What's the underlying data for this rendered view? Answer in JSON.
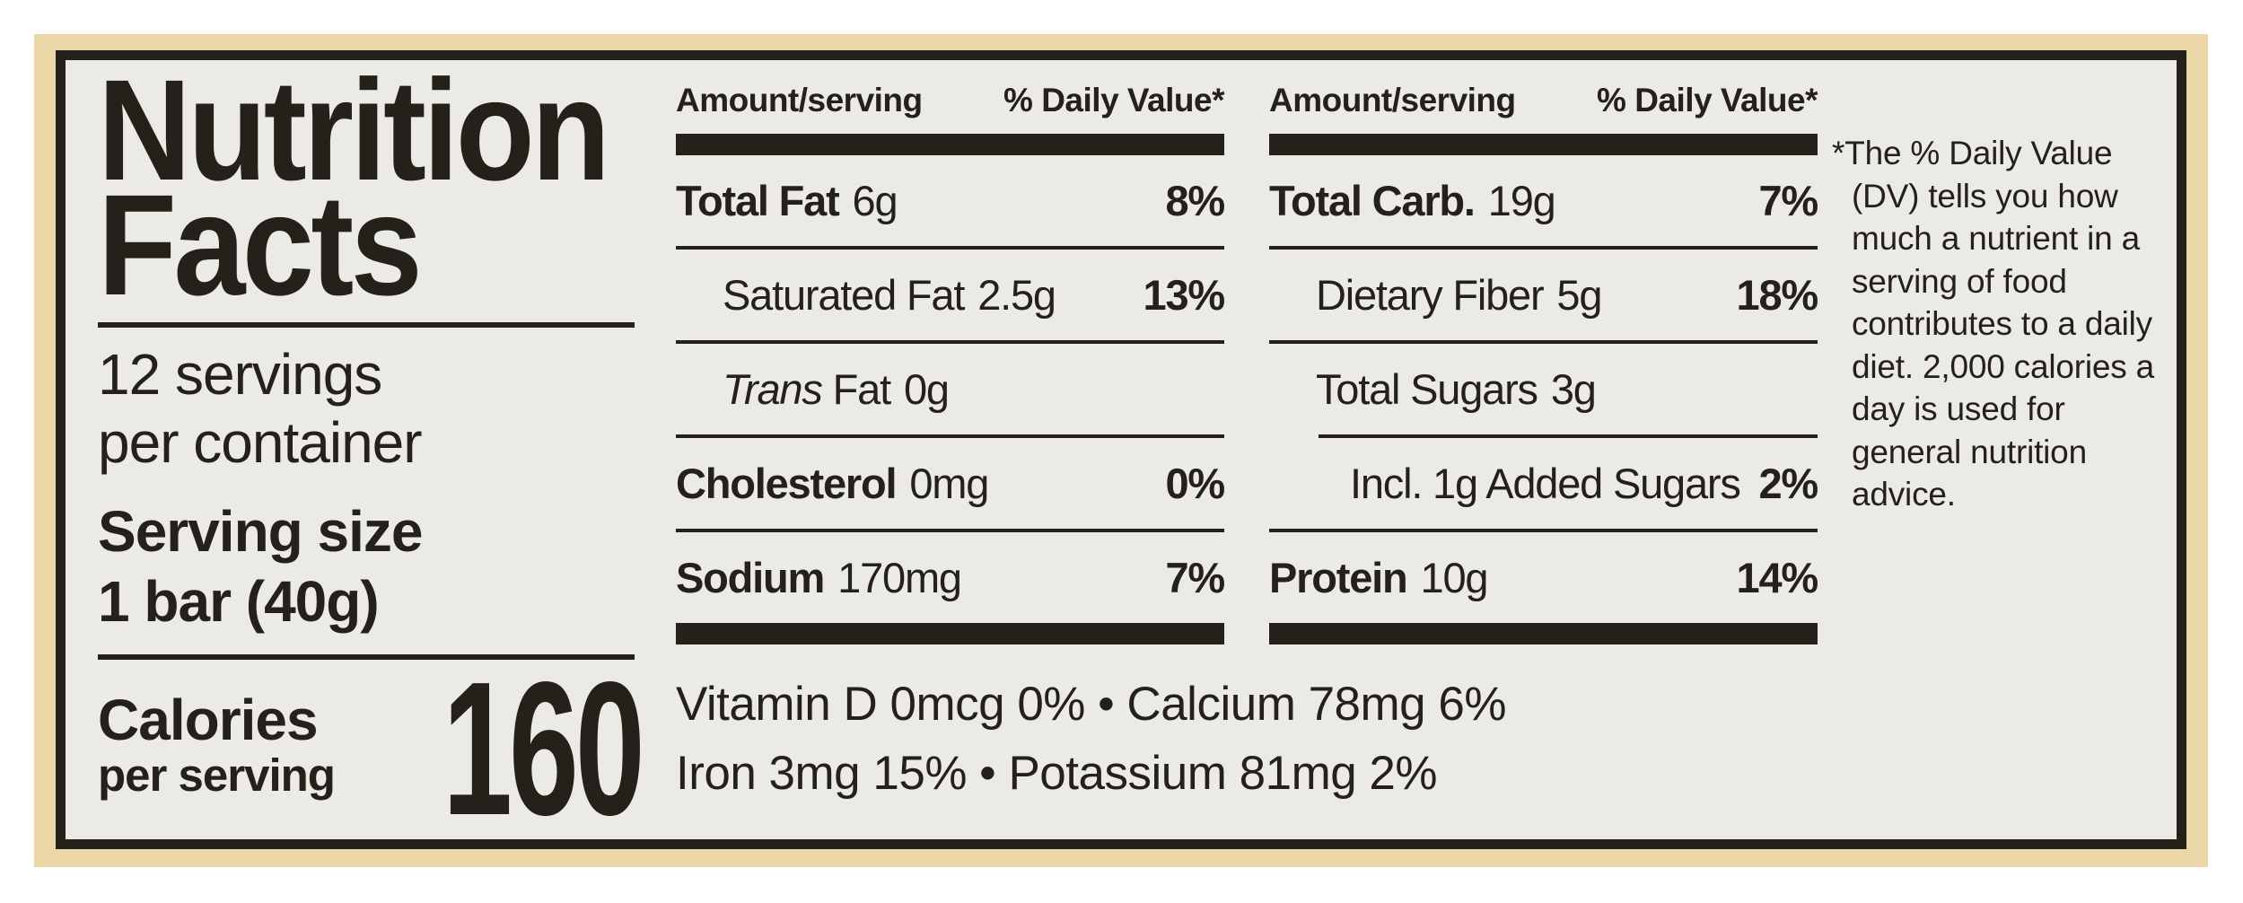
{
  "colors": {
    "page_background": "#ffffff",
    "package_tan": "#ecd7a9",
    "label_background": "#ebeae5",
    "ink_black": "#24211a"
  },
  "label": {
    "title_line1": "Nutrition",
    "title_line2": "Facts",
    "servings_line1": "12 servings",
    "servings_line2": "per container",
    "serving_size_line1": "Serving size",
    "serving_size_line2": "1 bar (40g)",
    "calories_line1": "Calories",
    "calories_line2": "per serving",
    "calories_value": "160",
    "columns": [
      {
        "header_amount": "Amount/serving",
        "header_dv": "% Daily Value*",
        "rows": [
          {
            "name": "Total Fat",
            "amount": "6g",
            "dv": "8%"
          },
          {
            "name": "Saturated Fat",
            "amount": "2.5g",
            "dv": "13%"
          },
          {
            "name_italic": "Trans",
            "name": "Fat",
            "amount": "0g",
            "dv": ""
          },
          {
            "name": "Cholesterol",
            "amount": "0mg",
            "dv": "0%"
          },
          {
            "name": "Sodium",
            "amount": "170mg",
            "dv": "7%"
          }
        ]
      },
      {
        "header_amount": "Amount/serving",
        "header_dv": "% Daily Value*",
        "rows": [
          {
            "name": "Total Carb.",
            "amount": "19g",
            "dv": "7%"
          },
          {
            "name": "Dietary Fiber",
            "amount": "5g",
            "dv": "18%"
          },
          {
            "name": "Total Sugars",
            "amount": "3g",
            "dv": ""
          },
          {
            "name": "Incl. 1g Added Sugars",
            "amount": "",
            "dv": "2%"
          },
          {
            "name": "Protein",
            "amount": "10g",
            "dv": "14%"
          }
        ]
      }
    ],
    "micronutrients": {
      "line1": "Vitamin D 0mcg 0% • Calcium 78mg 6%",
      "line2": "Iron 3mg 15% • Potassium 81mg 2%"
    },
    "footnote": "*The % Daily Value (DV) tells you how much a nutrient in a serving of food contributes to a daily diet. 2,000 calories a day is used for general nutrition advice."
  }
}
